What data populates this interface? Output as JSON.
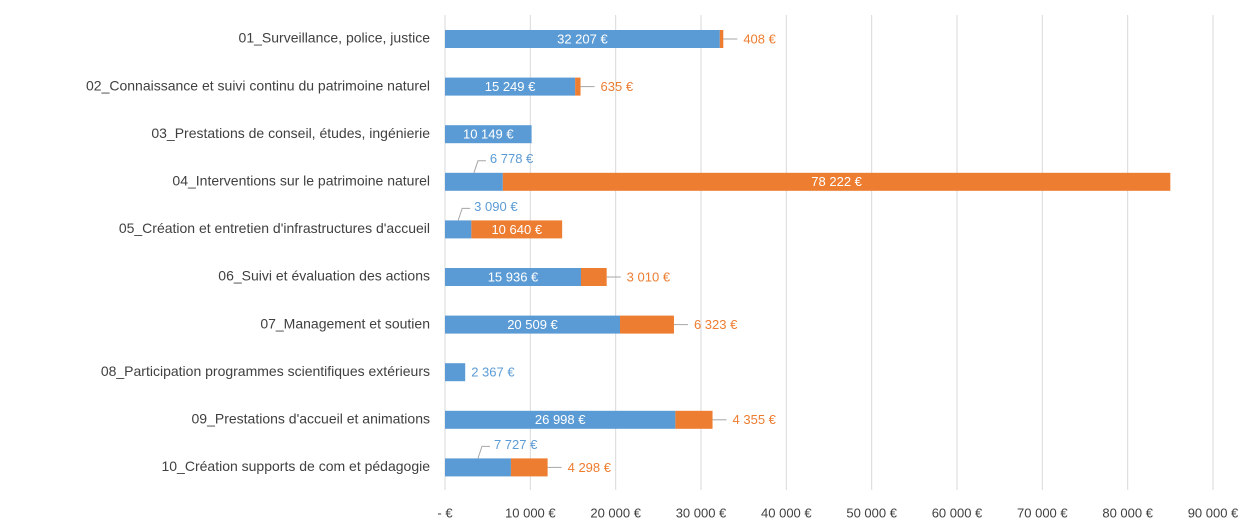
{
  "chart_data": {
    "type": "stacked-bar-horizontal",
    "categories": [
      "01_Surveillance, police, justice",
      "02_Connaissance et suivi continu du patrimoine naturel",
      "03_Prestations de conseil, études, ingénierie",
      "04_Interventions sur le patrimoine naturel",
      "05_Création et entretien d'infrastructures d'accueil",
      "06_Suivi et évaluation des actions",
      "07_Management et soutien",
      "08_Participation programmes scientifiques extérieurs",
      "09_Prestations d'accueil et animations",
      "10_Création supports de com et pédagogie"
    ],
    "series": [
      {
        "color": "#5b9bd5",
        "values": [
          32207,
          15249,
          10149,
          6778,
          3090,
          15936,
          20509,
          2367,
          26998,
          7727
        ],
        "value_labels": [
          "32 207 €",
          "15 249 €",
          "10 149 €",
          "6 778 €",
          "3 090 €",
          "15 936 €",
          "20 509 €",
          "2 367 €",
          "26 998 €",
          "7 727 €"
        ]
      },
      {
        "color": "#ed7d31",
        "values": [
          408,
          635,
          null,
          78222,
          10640,
          3010,
          6323,
          null,
          4355,
          4298
        ],
        "value_labels": [
          "408 €",
          "635 €",
          null,
          "78 222 €",
          "10 640 €",
          "3 010 €",
          "6 323 €",
          null,
          "4 355 €",
          "4 298 €"
        ]
      }
    ],
    "xlim": [
      0,
      90000
    ],
    "xticks": [
      {
        "value": 0,
        "label": "-  €"
      },
      {
        "value": 10000,
        "label": "10 000 €"
      },
      {
        "value": 20000,
        "label": "20 000 €"
      },
      {
        "value": 30000,
        "label": "30 000 €"
      },
      {
        "value": 40000,
        "label": "40 000 €"
      },
      {
        "value": 50000,
        "label": "50 000 €"
      },
      {
        "value": 60000,
        "label": "60 000 €"
      },
      {
        "value": 70000,
        "label": "70 000 €"
      },
      {
        "value": 80000,
        "label": "80 000 €"
      },
      {
        "value": 90000,
        "label": "90 000 €"
      }
    ],
    "grid": true
  }
}
